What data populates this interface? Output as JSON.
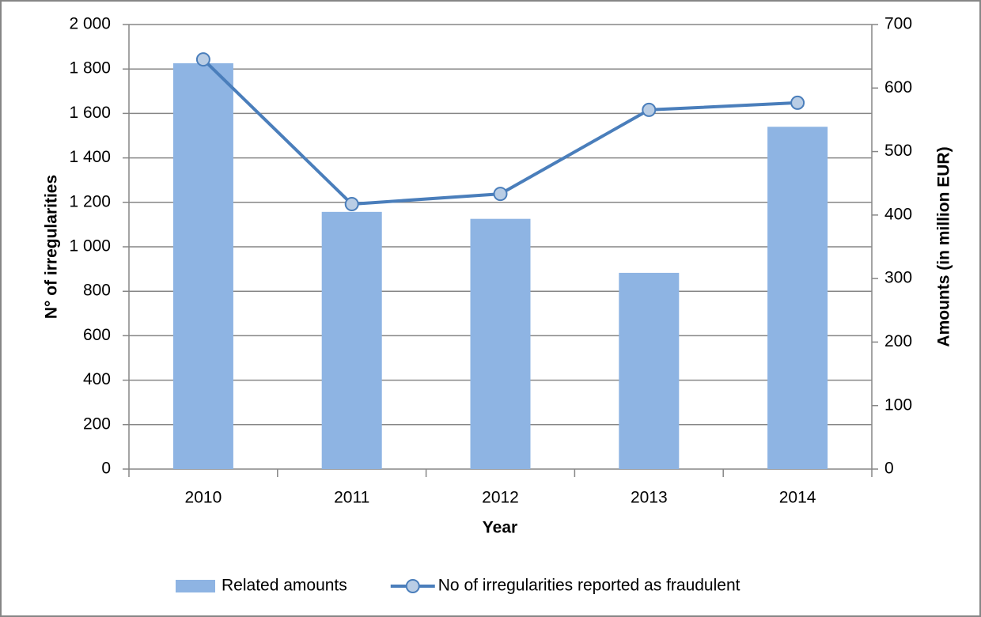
{
  "chart_data": {
    "type": "bar_line",
    "x_label": "Year",
    "y_label": "N° of irregularities",
    "y2_label": "Amounts (in million EUR)",
    "categories": [
      "2010",
      "2011",
      "2012",
      "2013",
      "2014"
    ],
    "series": [
      {
        "name": "Related amounts",
        "type": "bar",
        "axis": "y2",
        "color": "#8eb4e3",
        "values": [
          639,
          405,
          394,
          309,
          539
        ]
      },
      {
        "name": "No of irregularities reported as fraudulent",
        "type": "line",
        "axis": "y",
        "color": "#4a7ebb",
        "marker_fill": "#b9cde5",
        "values": [
          1843,
          1192,
          1238,
          1616,
          1648
        ]
      }
    ],
    "ylim": [
      0,
      2000
    ],
    "yticks": [
      0,
      200,
      400,
      600,
      800,
      {
        "value": 1000,
        "label": "1 000"
      },
      {
        "value": 1200,
        "label": "1 200"
      },
      {
        "value": 1400,
        "label": "1 400"
      },
      {
        "value": 1600,
        "label": "1 600"
      },
      {
        "value": 1800,
        "label": "1 800"
      },
      {
        "value": 2000,
        "label": "2 000"
      }
    ],
    "y2lim": [
      0,
      700
    ],
    "y2ticks": [
      0,
      100,
      200,
      300,
      400,
      500,
      600,
      700
    ],
    "grid": true,
    "legend": "bottom"
  }
}
